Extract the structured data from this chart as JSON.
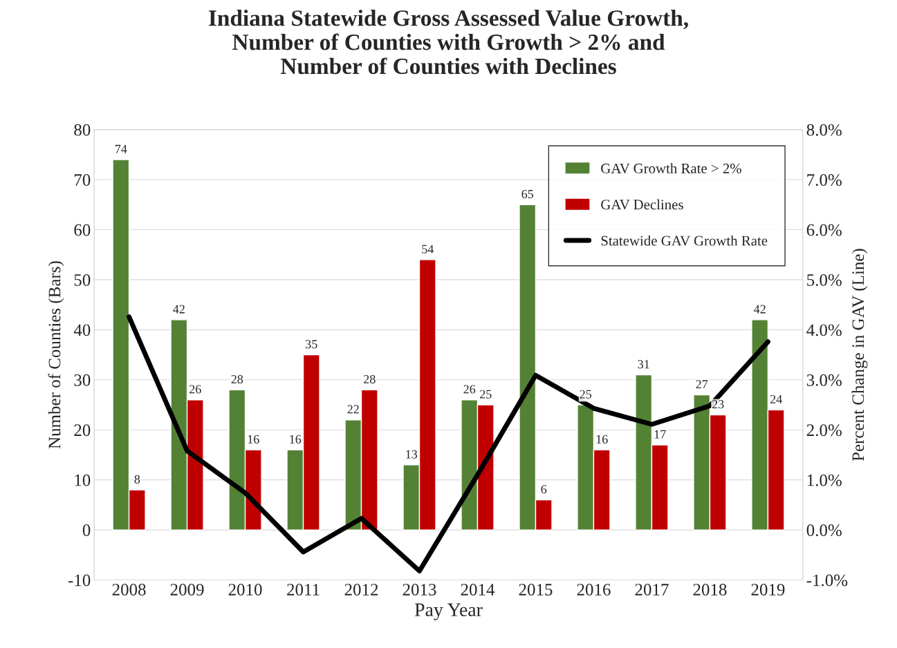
{
  "chart_data": {
    "type": "bar",
    "title": "Indiana Statewide Gross Assessed Value Growth,\nNumber of Counties with Growth > 2% and\nNumber of Counties with Declines",
    "xlabel": "Pay Year",
    "ylabel": "Number of Counties (Bars)",
    "y2label": "Percent Change in GAV (Line)",
    "categories": [
      "2008",
      "2009",
      "2010",
      "2011",
      "2012",
      "2013",
      "2014",
      "2015",
      "2016",
      "2017",
      "2018",
      "2019"
    ],
    "series": [
      {
        "name": "GAV Growth Rate > 2%",
        "color": "#548235",
        "values": [
          74,
          42,
          28,
          16,
          22,
          13,
          26,
          65,
          25,
          31,
          27,
          42
        ],
        "value_labels": [
          "74",
          "42",
          "28",
          "16",
          "22",
          "13",
          "26",
          "65",
          "25",
          "31",
          "27",
          "42"
        ]
      },
      {
        "name": "GAV Declines",
        "color": "#c00000",
        "values": [
          8,
          26,
          16,
          35,
          28,
          54,
          25,
          6,
          16,
          17,
          23,
          24
        ],
        "value_labels": [
          "8",
          "26",
          "16",
          "35",
          "28",
          "54",
          "25",
          "6",
          "16",
          "17",
          "23",
          "24"
        ]
      },
      {
        "name": "Statewide GAV Growth Rate",
        "type": "line",
        "axis": "y2",
        "color": "#000000",
        "values": [
          4.26,
          1.58,
          0.74,
          -0.44,
          0.23,
          -0.82,
          1.1,
          3.09,
          2.43,
          2.11,
          2.48,
          3.76
        ]
      }
    ],
    "ylim": [
      -10,
      80
    ],
    "yticks": [
      -10,
      0,
      10,
      20,
      30,
      40,
      50,
      60,
      70,
      80
    ],
    "y2lim": [
      -1,
      8
    ],
    "y2ticks": [
      {
        "value": -1,
        "label": "-1.0%"
      },
      {
        "value": 0,
        "label": "0.0%"
      },
      {
        "value": 1,
        "label": "1.0%"
      },
      {
        "value": 2,
        "label": "2.0%"
      },
      {
        "value": 3,
        "label": "3.0%"
      },
      {
        "value": 4,
        "label": "4.0%"
      },
      {
        "value": 5,
        "label": "5.0%"
      },
      {
        "value": 6,
        "label": "6.0%"
      },
      {
        "value": 7,
        "label": "7.0%"
      },
      {
        "value": 8,
        "label": "8.0%"
      }
    ],
    "grid": "y",
    "legend": "top right"
  }
}
